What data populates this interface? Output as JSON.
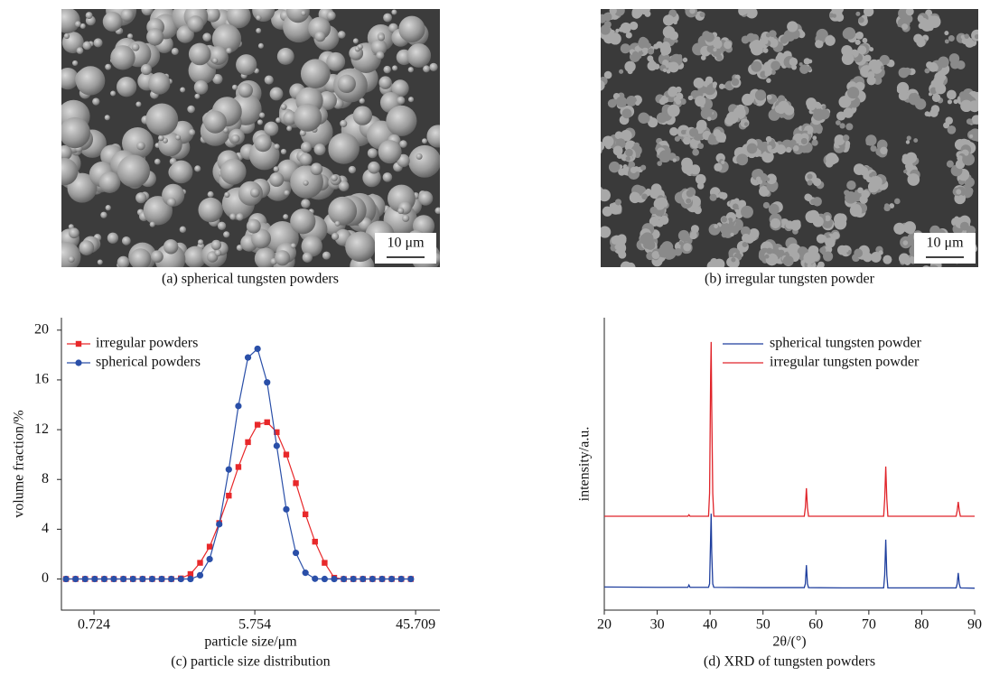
{
  "panels": [
    {
      "caption": "(a) spherical tungsten powders",
      "scale_bar": "10 μm"
    },
    {
      "caption": "(b) irregular tungsten powder",
      "scale_bar": "10 μm"
    }
  ],
  "chart_data": [
    {
      "type": "line",
      "caption": "(c) particle size distribution",
      "x_label": "particle size/μm",
      "y_label": "volume fraction/%",
      "x_scale": "log",
      "markers": true,
      "legend": "upper left",
      "x": [
        0.505,
        0.571,
        0.646,
        0.731,
        0.827,
        0.935,
        1.058,
        1.197,
        1.355,
        1.533,
        1.734,
        1.962,
        2.22,
        2.512,
        2.842,
        3.215,
        3.638,
        4.116,
        4.657,
        5.269,
        5.961,
        6.744,
        7.63,
        8.633,
        9.767,
        11.05,
        12.5,
        14.15,
        16.01,
        18.11,
        20.49,
        23.18,
        26.23,
        29.68,
        33.58,
        37.99,
        42.98
      ],
      "xlim": [
        0.476,
        62.5
      ],
      "ylim": [
        -2.5,
        21
      ],
      "xticks": [
        0.724,
        5.754,
        45.709
      ],
      "yticks": [
        0,
        4,
        8,
        12,
        16,
        20
      ],
      "series": [
        {
          "name": "irregular powders",
          "color": "#e8282a",
          "marker": "square",
          "values": [
            0,
            0,
            0,
            0,
            0,
            0,
            0,
            0,
            0,
            0,
            0,
            0,
            0.05,
            0.4,
            1.3,
            2.6,
            4.5,
            6.7,
            9.0,
            11.0,
            12.4,
            12.6,
            11.8,
            10.0,
            7.7,
            5.2,
            3.0,
            1.3,
            0.1,
            0,
            0,
            0,
            0,
            0,
            0,
            0,
            0
          ]
        },
        {
          "name": "spherical powders",
          "color": "#2a4fa8",
          "marker": "circle",
          "values": [
            0,
            0,
            0,
            0,
            0,
            0,
            0,
            0,
            0,
            0,
            0,
            0,
            0,
            0,
            0.3,
            1.6,
            4.4,
            8.8,
            13.9,
            17.8,
            18.5,
            15.8,
            10.7,
            5.6,
            2.1,
            0.5,
            0.02,
            0,
            0,
            0,
            0,
            0,
            0,
            0,
            0,
            0,
            0
          ]
        }
      ]
    },
    {
      "type": "line",
      "caption": "(d) XRD of tungsten powders",
      "x_label": "2θ/(°)",
      "y_label": "intensity/a.u.",
      "markers": false,
      "legend": "upper right",
      "x": [
        20,
        30,
        35.8,
        36.0,
        36.2,
        39.7,
        39.9,
        40.1,
        40.2,
        40.3,
        40.5,
        40.7,
        50,
        57.8,
        58.0,
        58.2,
        58.4,
        58.6,
        65,
        72.8,
        73.0,
        73.2,
        73.4,
        73.6,
        80,
        86.5,
        86.7,
        86.9,
        87.1,
        87.3,
        90
      ],
      "xlim": [
        20,
        90
      ],
      "ylim": [
        0,
        100
      ],
      "xticks": [
        20,
        30,
        40,
        50,
        60,
        70,
        80,
        90
      ],
      "series": [
        {
          "name": "spherical tungsten powder",
          "color": "#1f3f9e",
          "values": [
            7.9,
            7.8,
            7.8,
            8.6,
            7.8,
            7.8,
            9,
            25,
            33,
            20,
            9,
            7.8,
            7.7,
            7.7,
            9,
            15.4,
            9,
            7.7,
            7.6,
            7.6,
            12,
            24.1,
            12,
            7.6,
            7.6,
            7.6,
            9,
            12.7,
            9,
            7.6,
            7.5
          ]
        },
        {
          "name": "irregular tungsten powder",
          "color": "#e0242a",
          "values": [
            32.1,
            32.1,
            32.1,
            32.6,
            32.1,
            32.1,
            40,
            80,
            91.7,
            70,
            40,
            32.1,
            32.1,
            32.1,
            35,
            41.7,
            35,
            32.1,
            32.1,
            32.1,
            38,
            49.1,
            38,
            32.1,
            32.1,
            32.1,
            34,
            37.0,
            34,
            32.1,
            32.1
          ]
        }
      ]
    }
  ]
}
